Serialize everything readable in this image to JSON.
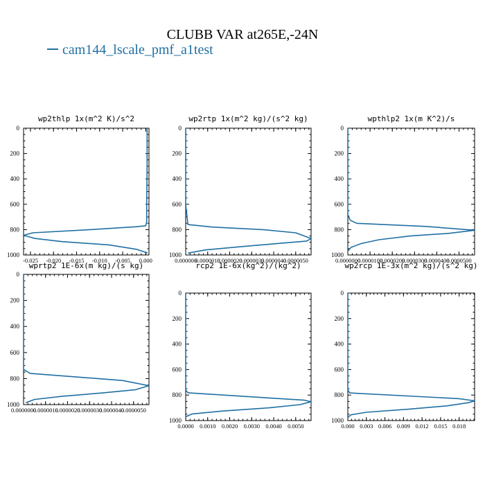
{
  "title": "CLUBB VAR at265E,-24N",
  "legend": {
    "label": "cam144_lscale_pmf_a1test",
    "color": "#1f6fa3"
  },
  "line_color": "#1f6fa3",
  "chart_data": [
    {
      "type": "line",
      "title": "wp2thlp  1x(m^2 K)/s^2",
      "ylim": [
        1000,
        0
      ],
      "yticks": [
        "0",
        "200",
        "400",
        "600",
        "800",
        "1000"
      ],
      "xlim": [
        -0.0265,
        0.0007
      ],
      "xticks": [
        "-0.025",
        "-0.020",
        "-0.015",
        "-0.010",
        "-0.005",
        "0.000"
      ],
      "xtick_values": [
        -0.025,
        -0.02,
        -0.015,
        -0.01,
        -0.005,
        0.0
      ],
      "series": [
        {
          "x": [
            0.0003,
            0.0003,
            0.0002,
            0.0002,
            0.0,
            -0.0025,
            -0.012,
            -0.0245,
            -0.0265,
            -0.024,
            -0.018,
            -0.008,
            -0.002,
            0.0004
          ],
          "y": [
            5,
            300,
            600,
            740,
            770,
            778,
            800,
            825,
            845,
            870,
            895,
            920,
            955,
            985
          ]
        }
      ]
    },
    {
      "type": "line",
      "title": "wp2rtp  1x(m^2 kg)/(s^2 kg)",
      "ylim": [
        1000,
        0
      ],
      "yticks": [
        "0",
        "200",
        "400",
        "600",
        "800",
        "1000"
      ],
      "xlim": [
        0,
        5.7e-06
      ],
      "xticks": [
        "0.000000",
        "0.0000010",
        "0.0000020",
        "0.0000030",
        "0.0000040",
        "0.0000050"
      ],
      "xtick_values": [
        0,
        1e-06,
        2e-06,
        3e-06,
        4e-06,
        5e-06
      ],
      "series": [
        {
          "x": [
            0,
            0,
            1e-07,
            1.2e-06,
            3.5e-06,
            5e-06,
            5.7e-06,
            5.5e-06,
            4e-06,
            2.5e-06,
            9e-07,
            1e-07
          ],
          "y": [
            0,
            600,
            760,
            780,
            800,
            825,
            870,
            890,
            912,
            935,
            960,
            985
          ]
        }
      ]
    },
    {
      "type": "line",
      "title": "wpthlp2  1x(m K^2)/s",
      "ylim": [
        1000,
        0
      ],
      "yticks": [
        "0",
        "200",
        "400",
        "600",
        "800",
        "1000"
      ],
      "xlim": [
        0,
        5.7e-05
      ],
      "xticks": [
        "0.0000000",
        "0.0000100",
        "0.0000200",
        "0.0000300",
        "0.0000400",
        "0.0000500"
      ],
      "xtick_values": [
        0,
        1e-05,
        2e-05,
        3e-05,
        4e-05,
        5e-05
      ],
      "series": [
        {
          "x": [
            0,
            0,
            1e-06,
            4e-06,
            3.5e-05,
            5.7e-05,
            4.5e-05,
            2.8e-05,
            1.4e-05,
            6e-06,
            1.5e-06,
            2e-07
          ],
          "y": [
            0,
            680,
            725,
            750,
            775,
            805,
            830,
            850,
            880,
            910,
            940,
            965
          ]
        }
      ]
    },
    {
      "type": "line",
      "title": "wprtp2  1E-6x(m kg)/(s kg)",
      "ylim": [
        1000,
        0
      ],
      "yticks": [
        "0",
        "200",
        "400",
        "600",
        "800",
        "1000"
      ],
      "xlim": [
        0,
        5.7e-06
      ],
      "xticks": [
        "0.0000000",
        "0.0000010",
        "0.0000020",
        "0.0000030",
        "0.0000040",
        "0.0000050"
      ],
      "xtick_values": [
        0,
        1e-06,
        2e-06,
        3e-06,
        4e-06,
        5e-06
      ],
      "series": [
        {
          "x": [
            0,
            0,
            3e-07,
            4.5e-06,
            5.7e-06,
            5.1e-06,
            3.6e-06,
            1.8e-06,
            5e-07,
            1e-07
          ],
          "y": [
            0,
            730,
            760,
            815,
            855,
            885,
            910,
            935,
            960,
            985
          ]
        }
      ]
    },
    {
      "type": "line",
      "title": "rcp2  1E-6x(kg^2)/(kg^2)",
      "ylim": [
        1000,
        0
      ],
      "yticks": [
        "0",
        "200",
        "400",
        "600",
        "800",
        "1000"
      ],
      "xlim": [
        0,
        0.0057
      ],
      "xticks": [
        "0.0000",
        "0.0010",
        "0.0020",
        "0.0030",
        "0.0040",
        "0.0050"
      ],
      "xtick_values": [
        0,
        0.001,
        0.002,
        0.003,
        0.004,
        0.005
      ],
      "series": [
        {
          "x": [
            0,
            0,
            0.0001,
            0.004,
            0.0054,
            0.0057,
            0.0052,
            0.0038,
            0.0017,
            0.0003,
            0.0
          ],
          "y": [
            0,
            760,
            782,
            825,
            840,
            852,
            875,
            900,
            925,
            948,
            970
          ]
        }
      ]
    },
    {
      "type": "line",
      "title": "wp2rcp  1E-3x(m^2 kg)/(s^2 kg)",
      "ylim": [
        1000,
        0
      ],
      "yticks": [
        "0",
        "200",
        "400",
        "600",
        "800",
        "1000"
      ],
      "xlim": [
        0,
        0.0205
      ],
      "xticks": [
        "0.000",
        "0.003",
        "0.006",
        "0.009",
        "0.012",
        "0.015",
        "0.018"
      ],
      "xtick_values": [
        0,
        0.003,
        0.006,
        0.009,
        0.012,
        0.015,
        0.018
      ],
      "series": [
        {
          "x": [
            0,
            0,
            0.0003,
            0.018,
            0.0205,
            0.0195,
            0.016,
            0.01,
            0.003,
            0.0005,
            0.0
          ],
          "y": [
            0,
            760,
            783,
            828,
            845,
            860,
            885,
            910,
            935,
            955,
            975
          ]
        }
      ]
    }
  ]
}
